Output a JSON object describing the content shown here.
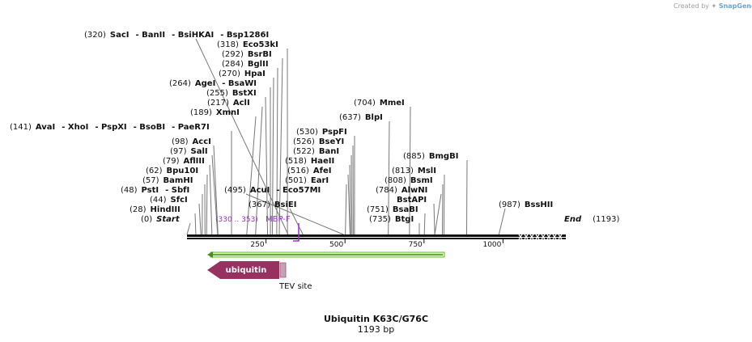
{
  "credit": {
    "prefix": "Created by",
    "brand": "SnapGene"
  },
  "map": {
    "title": "Ubiquitin K63C/G76C",
    "length_label": "1193 bp",
    "length_bp": 1193
  },
  "ruler": {
    "ticks": [
      250,
      500,
      750,
      1000
    ]
  },
  "enzyme_labels": [
    {
      "pos": "(320)",
      "names": [
        "SacI",
        "- BanII",
        "- BsiHKAI",
        "- Bsp1286I"
      ],
      "bp": 320
    },
    {
      "pos": "(318)",
      "names": [
        "Eco53kI"
      ],
      "bp": 318
    },
    {
      "pos": "(292)",
      "names": [
        "BsrBI"
      ],
      "bp": 292
    },
    {
      "pos": "(284)",
      "names": [
        "BglII"
      ],
      "bp": 284
    },
    {
      "pos": "(270)",
      "names": [
        "HpaI"
      ],
      "bp": 270
    },
    {
      "pos": "(264)",
      "names": [
        "AgeI",
        "- BsaWI"
      ],
      "bp": 264
    },
    {
      "pos": "(255)",
      "names": [
        "BstXI"
      ],
      "bp": 255
    },
    {
      "pos": "(217)",
      "names": [
        "AclI"
      ],
      "bp": 217
    },
    {
      "pos": "(189)",
      "names": [
        "XmnI"
      ],
      "bp": 189
    },
    {
      "pos": "(141)",
      "names": [
        "AvaI",
        "- XhoI",
        "- PspXI",
        "- BsoBI",
        "- PaeR7I"
      ],
      "bp": 141
    },
    {
      "pos": "(98)",
      "names": [
        "AccI"
      ],
      "bp": 98
    },
    {
      "pos": "(97)",
      "names": [
        "SalI"
      ],
      "bp": 97
    },
    {
      "pos": "(79)",
      "names": [
        "AflIII"
      ],
      "bp": 79
    },
    {
      "pos": "(62)",
      "names": [
        "Bpu10I"
      ],
      "bp": 62
    },
    {
      "pos": "(57)",
      "names": [
        "BamHI"
      ],
      "bp": 57
    },
    {
      "pos": "(48)",
      "names": [
        "PstI",
        "- SbfI"
      ],
      "bp": 48
    },
    {
      "pos": "(44)",
      "names": [
        "SfcI"
      ],
      "bp": 44
    },
    {
      "pos": "(28)",
      "names": [
        "HindIII"
      ],
      "bp": 28
    },
    {
      "pos": "(0)",
      "names": [
        "Start"
      ],
      "bp": 0
    },
    {
      "pos": "(495)",
      "names": [
        "AcuI",
        "- Eco57MI"
      ],
      "bp": 495
    },
    {
      "pos": "(367)",
      "names": [
        "BsiEI"
      ],
      "bp": 367
    },
    {
      "pos": "(530)",
      "names": [
        "PspFI"
      ],
      "bp": 530
    },
    {
      "pos": "(526)",
      "names": [
        "BseYI"
      ],
      "bp": 526
    },
    {
      "pos": "(522)",
      "names": [
        "BanI"
      ],
      "bp": 522
    },
    {
      "pos": "(518)",
      "names": [
        "HaeII"
      ],
      "bp": 518
    },
    {
      "pos": "(516)",
      "names": [
        "AfeI"
      ],
      "bp": 516
    },
    {
      "pos": "(501)",
      "names": [
        "EarI"
      ],
      "bp": 501
    },
    {
      "pos": "(704)",
      "names": [
        "MmeI"
      ],
      "bp": 704
    },
    {
      "pos": "(637)",
      "names": [
        "BlpI"
      ],
      "bp": 637
    },
    {
      "pos": "(885)",
      "names": [
        "BmgBI"
      ],
      "bp": 885
    },
    {
      "pos": "(813)",
      "names": [
        "MslI"
      ],
      "bp": 813
    },
    {
      "pos": "(808)",
      "names": [
        "BsmI"
      ],
      "bp": 808
    },
    {
      "pos": "(784)",
      "names": [
        "AlwNI"
      ],
      "bp": 784
    },
    {
      "pos": "",
      "names": [
        "BstAPI"
      ],
      "bp": 784
    },
    {
      "pos": "(751)",
      "names": [
        "BsaBI"
      ],
      "bp": 751
    },
    {
      "pos": "(735)",
      "names": [
        "BtgI"
      ],
      "bp": 735
    },
    {
      "pos": "(987)",
      "names": [
        "BssHII"
      ],
      "bp": 987
    },
    {
      "pos": "(1193)",
      "names": [
        "End"
      ],
      "bp": 1193
    }
  ],
  "primer": {
    "range": "(330 .. 353)",
    "name": "MBP-F",
    "color": "#9b30c8"
  },
  "features": {
    "ubiquitin": {
      "label": "ubiquitin",
      "color": "#97315f",
      "start_bp": 70,
      "end_bp": 298
    },
    "tev": {
      "label": "TEV site",
      "color": "#c9a0b6",
      "start_bp": 298,
      "end_bp": 319
    },
    "orf": {
      "color": "#6cc035",
      "start_bp": 70,
      "end_bp": 816
    }
  }
}
